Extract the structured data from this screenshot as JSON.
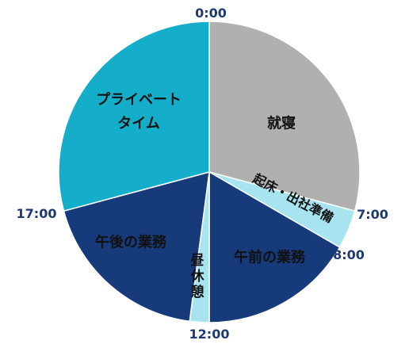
{
  "chart_data": {
    "type": "pie",
    "start_angle": "top",
    "direction": "clockwise",
    "total_hours": 24,
    "slices": [
      {
        "name": "就寝",
        "lines": [
          "就寝"
        ],
        "start": 0,
        "end": 7,
        "color": "#b0b0b0",
        "text_color": "#111111"
      },
      {
        "name": "起床・出社準備",
        "lines": [
          "起床・出社準備"
        ],
        "start": 7,
        "end": 8,
        "color": "#a8e4ef",
        "text_color": "#111111"
      },
      {
        "name": "午前の業務",
        "lines": [
          "午前の業務"
        ],
        "start": 8,
        "end": 12,
        "color": "#163a7a",
        "text_color": "#ffffff"
      },
      {
        "name": "昼休憩",
        "lines": [
          "昼",
          "休",
          "憩"
        ],
        "start": 12,
        "end": 12.5,
        "color": "#a8e4ef",
        "text_color": "#111111"
      },
      {
        "name": "午後の業務",
        "lines": [
          "午後の業務"
        ],
        "start": 12.5,
        "end": 17,
        "color": "#163a7a",
        "text_color": "#ffffff"
      },
      {
        "name": "プライベートタイム",
        "lines": [
          "プライベート",
          "タイム"
        ],
        "start": 17,
        "end": 24,
        "color": "#14aecb",
        "text_color": "#111111"
      }
    ],
    "time_labels": [
      {
        "text": "0:00",
        "hour": 0
      },
      {
        "text": "7:00",
        "hour": 7
      },
      {
        "text": "8:00",
        "hour": 8
      },
      {
        "text": "12:00",
        "hour": 12
      },
      {
        "text": "17:00",
        "hour": 17
      }
    ]
  }
}
